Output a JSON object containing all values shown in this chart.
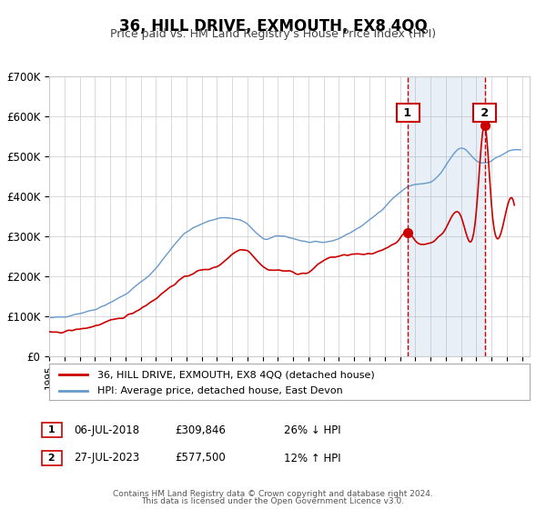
{
  "title": "36, HILL DRIVE, EXMOUTH, EX8 4QQ",
  "subtitle": "Price paid vs. HM Land Registry's House Price Index (HPI)",
  "legend_label_red": "36, HILL DRIVE, EXMOUTH, EX8 4QQ (detached house)",
  "legend_label_blue": "HPI: Average price, detached house, East Devon",
  "annotation1_label": "1",
  "annotation1_date": "06-JUL-2018",
  "annotation1_price": "£309,846",
  "annotation1_hpi": "26% ↓ HPI",
  "annotation2_label": "2",
  "annotation2_date": "27-JUL-2023",
  "annotation2_price": "£577,500",
  "annotation2_hpi": "12% ↑ HPI",
  "footer_line1": "Contains HM Land Registry data © Crown copyright and database right 2024.",
  "footer_line2": "This data is licensed under the Open Government Licence v3.0.",
  "red_color": "#cc0000",
  "blue_color": "#6699cc",
  "annotation_line_color": "#cc0000",
  "background_color": "#f0f4ff",
  "plot_bg_color": "#ffffff",
  "grid_color": "#cccccc",
  "ylim": [
    0,
    700000
  ],
  "yticks": [
    0,
    100000,
    200000,
    300000,
    400000,
    500000,
    600000,
    700000
  ],
  "ytick_labels": [
    "£0",
    "£100K",
    "£200K",
    "£300K",
    "£400K",
    "£500K",
    "£600K",
    "£700K"
  ],
  "sale1_year": 2018.52,
  "sale1_price": 309846,
  "sale2_year": 2023.57,
  "sale2_price": 577500,
  "xlim_start": 1995.0,
  "xlim_end": 2026.5
}
